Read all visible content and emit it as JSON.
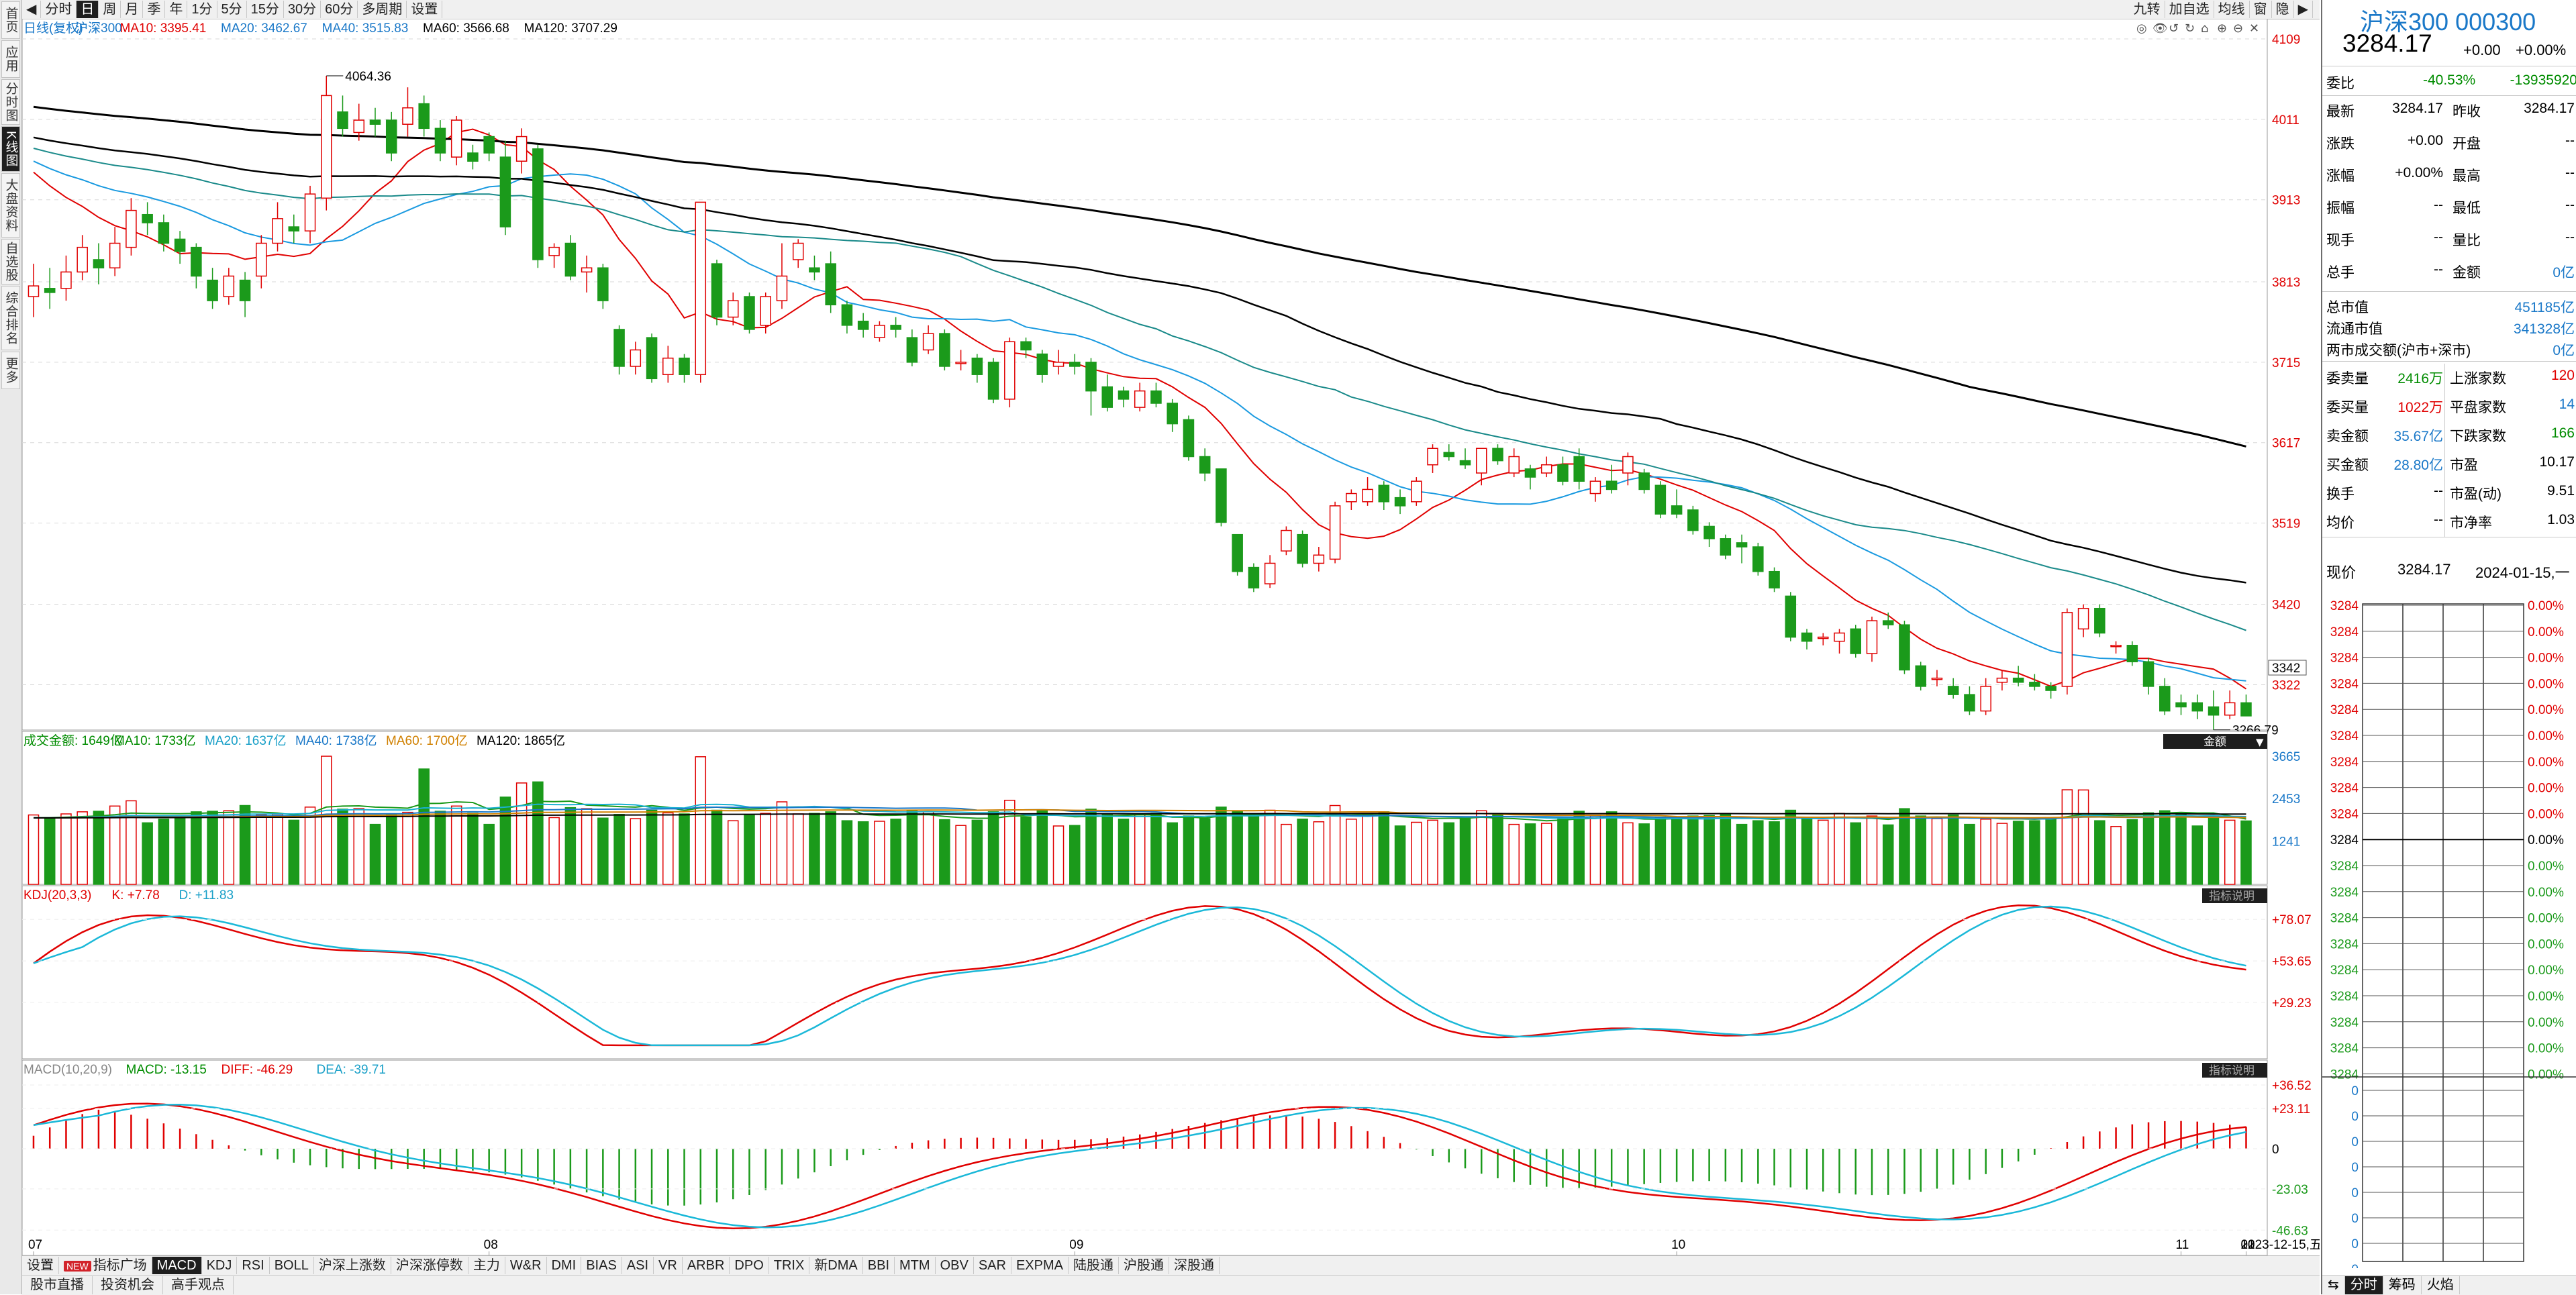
{
  "sidebar": {
    "tabs": [
      {
        "label": "首页",
        "active": false
      },
      {
        "label": "应用",
        "active": false
      },
      {
        "label": "分时图",
        "active": false
      },
      {
        "label": "K线图",
        "active": true
      },
      {
        "label": "大盘资料",
        "active": false
      },
      {
        "label": "自选股",
        "active": false
      },
      {
        "label": "综合排名",
        "active": false
      },
      {
        "label": "更多",
        "active": false
      }
    ]
  },
  "toolbar": {
    "periods": [
      {
        "label": "分时",
        "active": false
      },
      {
        "label": "日",
        "active": true
      },
      {
        "label": "周",
        "active": false
      },
      {
        "label": "月",
        "active": false
      },
      {
        "label": "季",
        "active": false
      },
      {
        "label": "年",
        "active": false
      },
      {
        "label": "1分",
        "active": false
      },
      {
        "label": "5分",
        "active": false
      },
      {
        "label": "15分",
        "active": false
      },
      {
        "label": "30分",
        "active": false
      },
      {
        "label": "60分",
        "active": false
      },
      {
        "label": "多周期",
        "active": false
      },
      {
        "label": "设置",
        "active": false
      }
    ],
    "right_buttons": [
      "九转",
      "加自选",
      "均线",
      "窗",
      "隐"
    ]
  },
  "main_chart": {
    "legend": [
      {
        "text": "日线(复权)",
        "color": "#1a78c8"
      },
      {
        "text": "沪深300",
        "color": "#1a78c8"
      },
      {
        "text": "MA10: 3395.41",
        "color": "#e00000"
      },
      {
        "text": "MA20: 3462.67",
        "color": "#1a78c8"
      },
      {
        "text": "MA40: 3515.83",
        "color": "#1a78c8"
      },
      {
        "text": "MA60: 3566.68",
        "color": "#000000"
      },
      {
        "text": "MA120: 3707.29",
        "color": "#000000"
      }
    ],
    "price_ticks": [
      "4109",
      "4011",
      "3913",
      "3813",
      "3715",
      "3617",
      "3519",
      "3420",
      "3322"
    ],
    "current_price_label": "3342",
    "high_label": "4064.36",
    "low_label": "3266.79"
  },
  "volume_chart": {
    "legend": [
      {
        "text": "成交金额: 1649亿",
        "color": "#008c00"
      },
      {
        "text": "MA10: 1733亿",
        "color": "#008c00"
      },
      {
        "text": "MA20: 1637亿",
        "color": "#1aa0c8"
      },
      {
        "text": "MA40: 1738亿",
        "color": "#1a78c8"
      },
      {
        "text": "MA60: 1700亿",
        "color": "#d08000"
      },
      {
        "text": "MA120: 1865亿",
        "color": "#000000"
      }
    ],
    "ticks": [
      "3665",
      "2453",
      "1241"
    ],
    "dropdown_label": "金额"
  },
  "kdj_chart": {
    "legend": [
      {
        "text": "KDJ(20,3,3)",
        "color": "#e00000"
      },
      {
        "text": "K: +7.78",
        "color": "#e00000"
      },
      {
        "text": "D: +11.83",
        "color": "#1aa0c8"
      }
    ],
    "ticks": [
      "+78.07",
      "+53.65",
      "+29.23"
    ],
    "button_label": "指标说明"
  },
  "macd_chart": {
    "legend": [
      {
        "text": "MACD(10,20,9)",
        "color": "#888888"
      },
      {
        "text": "MACD: -13.15",
        "color": "#008c00"
      },
      {
        "text": "DIFF: -46.29",
        "color": "#e00000"
      },
      {
        "text": "DEA: -39.71",
        "color": "#1aa0c8"
      }
    ],
    "ticks": [
      "+36.52",
      "+23.11",
      "0",
      "-23.03",
      "-46.63"
    ],
    "button_label": "指标说明"
  },
  "date_axis": {
    "labels": [
      "07",
      "08",
      "09",
      "10",
      "11",
      "12",
      "2023-12-15,五",
      "01"
    ]
  },
  "bottom_tabs": [
    {
      "label": "设置",
      "active": false,
      "badge": ""
    },
    {
      "label": "指标广场",
      "active": false,
      "badge": "NEW"
    },
    {
      "label": "MACD",
      "active": true,
      "badge": ""
    },
    {
      "label": "KDJ",
      "active": false,
      "badge": ""
    },
    {
      "label": "RSI",
      "active": false,
      "badge": ""
    },
    {
      "label": "BOLL",
      "active": false,
      "badge": ""
    },
    {
      "label": "沪深上涨数",
      "active": false,
      "badge": ""
    },
    {
      "label": "沪深涨停数",
      "active": false,
      "badge": ""
    },
    {
      "label": "主力",
      "active": false,
      "badge": ""
    },
    {
      "label": "W&R",
      "active": false,
      "badge": ""
    },
    {
      "label": "DMI",
      "active": false,
      "badge": ""
    },
    {
      "label": "BIAS",
      "active": false,
      "badge": ""
    },
    {
      "label": "ASI",
      "active": false,
      "badge": ""
    },
    {
      "label": "VR",
      "active": false,
      "badge": ""
    },
    {
      "label": "ARBR",
      "active": false,
      "badge": ""
    },
    {
      "label": "DPO",
      "active": false,
      "badge": ""
    },
    {
      "label": "TRIX",
      "active": false,
      "badge": ""
    },
    {
      "label": "新DMA",
      "active": false,
      "badge": ""
    },
    {
      "label": "BBI",
      "active": false,
      "badge": ""
    },
    {
      "label": "MTM",
      "active": false,
      "badge": ""
    },
    {
      "label": "OBV",
      "active": false,
      "badge": ""
    },
    {
      "label": "SAR",
      "active": false,
      "badge": ""
    },
    {
      "label": "EXPMA",
      "active": false,
      "badge": ""
    },
    {
      "label": "陆股通",
      "active": false,
      "badge": ""
    },
    {
      "label": "沪股通",
      "active": false,
      "badge": ""
    },
    {
      "label": "深股通",
      "active": false,
      "badge": ""
    }
  ],
  "bottom_links": [
    "股市直播",
    "投资机会",
    "高手观点"
  ],
  "quote": {
    "title": "沪深300 000300",
    "price": "3284.17",
    "change": "+0.00",
    "change_pct": "+0.00%",
    "weibi_label": "委比",
    "weibi_pct": "-40.53%",
    "weibi_diff": "-13935920",
    "rows1": [
      {
        "l1": "最新",
        "v1": "3284.17",
        "l2": "昨收",
        "v2": "3284.17"
      },
      {
        "l1": "涨跌",
        "v1": "+0.00",
        "l2": "开盘",
        "v2": "--"
      },
      {
        "l1": "涨幅",
        "v1": "+0.00%",
        "l2": "最高",
        "v2": "--"
      },
      {
        "l1": "振幅",
        "v1": "--",
        "l2": "最低",
        "v2": "--"
      },
      {
        "l1": "现手",
        "v1": "--",
        "l2": "量比",
        "v2": "--"
      },
      {
        "l1": "总手",
        "v1": "--",
        "l2": "金额",
        "v2": "0亿"
      }
    ],
    "caps": [
      {
        "label": "总市值",
        "value": "451185亿"
      },
      {
        "label": "流通市值",
        "value": "341328亿"
      },
      {
        "label": "两市成交额(沪市+深市)",
        "value": "0亿"
      }
    ],
    "rows2": [
      {
        "l1": "委卖量",
        "v1": "2416万",
        "l2": "上涨家数",
        "v2": "120"
      },
      {
        "l1": "委买量",
        "v1": "1022万",
        "l2": "平盘家数",
        "v2": "14"
      },
      {
        "l1": "卖金额",
        "v1": "35.67亿",
        "l2": "下跌家数",
        "v2": "166"
      },
      {
        "l1": "买金额",
        "v1": "28.80亿",
        "l2": "市盈",
        "v2": "10.17"
      },
      {
        "l1": "换手",
        "v1": "--",
        "l2": "市盈(动)",
        "v2": "9.51"
      },
      {
        "l1": "均价",
        "v1": "--",
        "l2": "市净率",
        "v2": "1.03"
      }
    ],
    "current_label": "现价",
    "current_value": "3284.17",
    "current_date": "2024-01-15,一",
    "tick_prices": [
      "3284",
      "3284",
      "3284",
      "3284",
      "3284",
      "3284",
      "3284",
      "3284",
      "3284",
      "3284",
      "3284",
      "3284",
      "3284",
      "3284",
      "3284",
      "3284",
      "3284",
      "3284",
      "3284"
    ],
    "tick_pcts": [
      "0.00%",
      "0.00%",
      "0.00%",
      "0.00%",
      "0.00%",
      "0.00%",
      "0.00%",
      "0.00%",
      "0.00%",
      "0.00%",
      "0.00%",
      "0.00%",
      "0.00%",
      "0.00%",
      "0.00%",
      "0.00%",
      "0.00%",
      "0.00%",
      "0.00%"
    ],
    "vol_ticks": [
      "0",
      "0",
      "0",
      "0",
      "0",
      "0",
      "0",
      "0"
    ],
    "panel_tabs": [
      {
        "label": "分时",
        "active": true
      },
      {
        "label": "筹码",
        "active": false
      },
      {
        "label": "火焰",
        "active": false
      }
    ]
  },
  "chart_data": {
    "type": "candlestick",
    "x": [
      "07",
      "08",
      "09",
      "10",
      "11",
      "12",
      "01"
    ],
    "ylim": [
      3266.79,
      4109
    ],
    "candles": [
      [
        3795,
        3808,
        3835,
        3770
      ],
      [
        3805,
        3800,
        3830,
        3780
      ],
      [
        3805,
        3825,
        3845,
        3790
      ],
      [
        3825,
        3855,
        3870,
        3815
      ],
      [
        3840,
        3830,
        3860,
        3810
      ],
      [
        3830,
        3860,
        3880,
        3820
      ],
      [
        3855,
        3900,
        3915,
        3845
      ],
      [
        3895,
        3885,
        3910,
        3870
      ],
      [
        3885,
        3860,
        3895,
        3850
      ],
      [
        3865,
        3850,
        3875,
        3835
      ],
      [
        3855,
        3820,
        3860,
        3805
      ],
      [
        3815,
        3790,
        3830,
        3780
      ],
      [
        3795,
        3820,
        3830,
        3785
      ],
      [
        3815,
        3790,
        3825,
        3770
      ],
      [
        3820,
        3860,
        3870,
        3805
      ],
      [
        3860,
        3890,
        3910,
        3850
      ],
      [
        3880,
        3875,
        3895,
        3860
      ],
      [
        3875,
        3920,
        3930,
        3860
      ],
      [
        3915,
        4040,
        4064,
        3900
      ],
      [
        4020,
        4000,
        4040,
        3990
      ],
      [
        3995,
        4010,
        4030,
        3985
      ],
      [
        4010,
        4005,
        4025,
        3990
      ],
      [
        4010,
        3970,
        4020,
        3960
      ],
      [
        4005,
        4025,
        4050,
        3990
      ],
      [
        4030,
        4000,
        4040,
        3990
      ],
      [
        4000,
        3970,
        4010,
        3960
      ],
      [
        3965,
        4010,
        4015,
        3955
      ],
      [
        3970,
        3960,
        3980,
        3950
      ],
      [
        3990,
        3970,
        3995,
        3960
      ],
      [
        3965,
        3880,
        3985,
        3870
      ],
      [
        3960,
        3990,
        4000,
        3945
      ],
      [
        3975,
        3840,
        3980,
        3830
      ],
      [
        3845,
        3855,
        3860,
        3830
      ],
      [
        3860,
        3820,
        3870,
        3815
      ],
      [
        3825,
        3830,
        3845,
        3800
      ],
      [
        3830,
        3790,
        3835,
        3780
      ],
      [
        3755,
        3710,
        3760,
        3700
      ],
      [
        3710,
        3730,
        3740,
        3700
      ],
      [
        3745,
        3695,
        3750,
        3690
      ],
      [
        3700,
        3720,
        3735,
        3690
      ],
      [
        3720,
        3700,
        3725,
        3690
      ],
      [
        3700,
        3910,
        3910,
        3690
      ],
      [
        3835,
        3770,
        3840,
        3760
      ],
      [
        3770,
        3790,
        3800,
        3760
      ],
      [
        3795,
        3755,
        3800,
        3750
      ],
      [
        3760,
        3795,
        3800,
        3750
      ],
      [
        3790,
        3820,
        3860,
        3780
      ],
      [
        3840,
        3860,
        3865,
        3830
      ],
      [
        3830,
        3825,
        3845,
        3815
      ],
      [
        3835,
        3785,
        3850,
        3775
      ],
      [
        3785,
        3760,
        3790,
        3750
      ],
      [
        3765,
        3755,
        3775,
        3745
      ],
      [
        3745,
        3760,
        3765,
        3740
      ],
      [
        3760,
        3755,
        3770,
        3745
      ],
      [
        3745,
        3715,
        3755,
        3710
      ],
      [
        3730,
        3750,
        3760,
        3725
      ],
      [
        3750,
        3710,
        3755,
        3705
      ],
      [
        3715,
        3715,
        3730,
        3705
      ],
      [
        3720,
        3700,
        3725,
        3690
      ],
      [
        3715,
        3670,
        3720,
        3665
      ],
      [
        3670,
        3740,
        3745,
        3660
      ],
      [
        3740,
        3730,
        3745,
        3720
      ],
      [
        3725,
        3700,
        3730,
        3690
      ],
      [
        3710,
        3715,
        3730,
        3700
      ],
      [
        3715,
        3710,
        3725,
        3700
      ],
      [
        3715,
        3680,
        3720,
        3650
      ],
      [
        3685,
        3660,
        3700,
        3655
      ],
      [
        3680,
        3670,
        3685,
        3660
      ],
      [
        3660,
        3680,
        3690,
        3655
      ],
      [
        3680,
        3665,
        3690,
        3660
      ],
      [
        3665,
        3640,
        3670,
        3630
      ],
      [
        3645,
        3600,
        3650,
        3595
      ],
      [
        3600,
        3580,
        3610,
        3570
      ],
      [
        3585,
        3520,
        3585,
        3515
      ],
      [
        3505,
        3460,
        3505,
        3455
      ],
      [
        3465,
        3440,
        3470,
        3435
      ],
      [
        3445,
        3470,
        3480,
        3440
      ],
      [
        3485,
        3510,
        3515,
        3480
      ],
      [
        3505,
        3470,
        3510,
        3465
      ],
      [
        3470,
        3480,
        3490,
        3460
      ],
      [
        3475,
        3540,
        3545,
        3470
      ],
      [
        3545,
        3555,
        3560,
        3535
      ],
      [
        3545,
        3560,
        3575,
        3540
      ],
      [
        3565,
        3545,
        3570,
        3535
      ],
      [
        3550,
        3540,
        3560,
        3530
      ],
      [
        3545,
        3570,
        3575,
        3540
      ],
      [
        3590,
        3610,
        3615,
        3580
      ],
      [
        3605,
        3600,
        3615,
        3595
      ],
      [
        3595,
        3590,
        3610,
        3585
      ],
      [
        3580,
        3610,
        3610,
        3565
      ],
      [
        3610,
        3595,
        3615,
        3590
      ],
      [
        3580,
        3600,
        3610,
        3575
      ],
      [
        3585,
        3575,
        3590,
        3560
      ],
      [
        3580,
        3590,
        3600,
        3575
      ],
      [
        3590,
        3570,
        3600,
        3565
      ],
      [
        3600,
        3570,
        3610,
        3560
      ],
      [
        3555,
        3570,
        3575,
        3545
      ],
      [
        3570,
        3560,
        3590,
        3555
      ],
      [
        3580,
        3600,
        3605,
        3565
      ],
      [
        3580,
        3560,
        3585,
        3555
      ],
      [
        3565,
        3530,
        3570,
        3525
      ],
      [
        3540,
        3530,
        3560,
        3525
      ],
      [
        3535,
        3510,
        3540,
        3505
      ],
      [
        3515,
        3500,
        3520,
        3490
      ],
      [
        3500,
        3480,
        3505,
        3475
      ],
      [
        3495,
        3490,
        3505,
        3470
      ],
      [
        3490,
        3460,
        3495,
        3455
      ],
      [
        3460,
        3440,
        3465,
        3435
      ],
      [
        3430,
        3380,
        3435,
        3375
      ],
      [
        3385,
        3375,
        3390,
        3365
      ],
      [
        3380,
        3380,
        3385,
        3370
      ],
      [
        3375,
        3385,
        3390,
        3360
      ],
      [
        3390,
        3360,
        3395,
        3355
      ],
      [
        3360,
        3400,
        3405,
        3350
      ],
      [
        3400,
        3395,
        3410,
        3390
      ],
      [
        3395,
        3340,
        3400,
        3335
      ],
      [
        3345,
        3320,
        3350,
        3315
      ],
      [
        3330,
        3330,
        3340,
        3320
      ],
      [
        3320,
        3310,
        3330,
        3305
      ],
      [
        3310,
        3290,
        3320,
        3285
      ],
      [
        3290,
        3320,
        3330,
        3285
      ],
      [
        3325,
        3330,
        3340,
        3315
      ],
      [
        3330,
        3325,
        3345,
        3320
      ],
      [
        3325,
        3320,
        3335,
        3315
      ],
      [
        3320,
        3315,
        3325,
        3305
      ],
      [
        3320,
        3410,
        3415,
        3310
      ],
      [
        3390,
        3415,
        3420,
        3380
      ],
      [
        3415,
        3385,
        3420,
        3380
      ],
      [
        3370,
        3370,
        3375,
        3360
      ],
      [
        3370,
        3350,
        3375,
        3345
      ],
      [
        3350,
        3320,
        3355,
        3310
      ],
      [
        3320,
        3290,
        3330,
        3285
      ],
      [
        3300,
        3295,
        3310,
        3285
      ],
      [
        3300,
        3290,
        3310,
        3280
      ],
      [
        3295,
        3285,
        3315,
        3267
      ],
      [
        3285,
        3300,
        3315,
        3280
      ],
      [
        3300,
        3284,
        3310,
        3284
      ]
    ]
  }
}
